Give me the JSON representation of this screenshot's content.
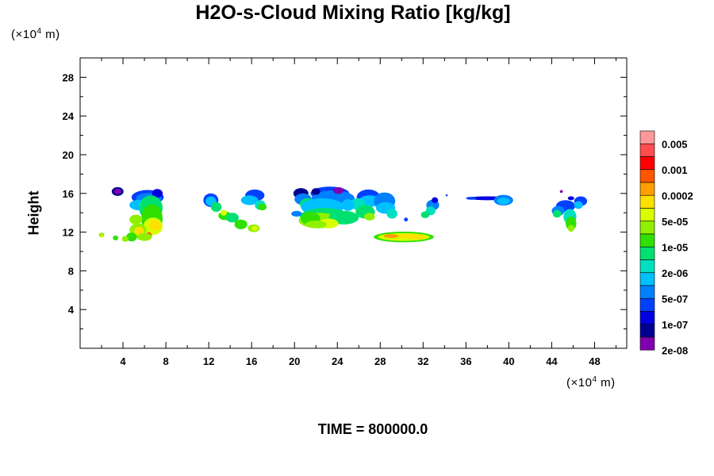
{
  "chart_data": {
    "type": "heatmap",
    "title": "H2O-s-Cloud Mixing Ratio [kg/kg]",
    "ylabel": "Height",
    "x_unit": "(×10",
    "x_unit_exp": "4",
    "x_unit_end": " m)",
    "y_unit": "(×10",
    "y_unit_exp": "4",
    "y_unit_end": " m)",
    "time_label": "TIME = 800000.0",
    "xlim": [
      0,
      51
    ],
    "ylim": [
      0,
      30
    ],
    "x_ticks": [
      4,
      8,
      12,
      16,
      20,
      24,
      28,
      32,
      36,
      40,
      44,
      48
    ],
    "y_ticks": [
      4,
      8,
      12,
      16,
      20,
      24,
      28
    ],
    "colorbar": {
      "colors": [
        "#ff9999",
        "#ff4d4d",
        "#ff0000",
        "#ff5500",
        "#ffa000",
        "#ffe000",
        "#d8ff00",
        "#90f000",
        "#30e000",
        "#00e070",
        "#00e0c0",
        "#00c0ff",
        "#0080ff",
        "#0040ff",
        "#0000e0",
        "#000090",
        "#8000b0"
      ],
      "labels": [
        "0.005",
        "0.001",
        "0.0002",
        "5e-05",
        "1e-05",
        "2e-06",
        "5e-07",
        "1e-07",
        "2e-08"
      ]
    },
    "cloud_regions": [
      {
        "x": [
          3.4,
          7.6
        ],
        "y": [
          11.0,
          16.5
        ],
        "max_level": "0.0002"
      },
      {
        "x": [
          1.5,
          3.6
        ],
        "y": [
          11.0,
          12.0
        ],
        "max_level": "1e-05"
      },
      {
        "x": [
          11.5,
          17.5
        ],
        "y": [
          12.0,
          16.5
        ],
        "max_level": "2e-06"
      },
      {
        "x": [
          19.8,
          29.5
        ],
        "y": [
          12.0,
          16.8
        ],
        "max_level": "1e-05"
      },
      {
        "x": [
          27.5,
          33.0
        ],
        "y": [
          11.0,
          12.2
        ],
        "max_level": "5e-05"
      },
      {
        "x": [
          32.5,
          34.0
        ],
        "y": [
          13.5,
          15.5
        ],
        "max_level": "2e-06"
      },
      {
        "x": [
          35.5,
          40.5
        ],
        "y": [
          14.5,
          16.0
        ],
        "max_level": "5e-07"
      },
      {
        "x": [
          43.5,
          47.5
        ],
        "y": [
          12.0,
          16.2
        ],
        "max_level": "1e-05"
      }
    ]
  }
}
